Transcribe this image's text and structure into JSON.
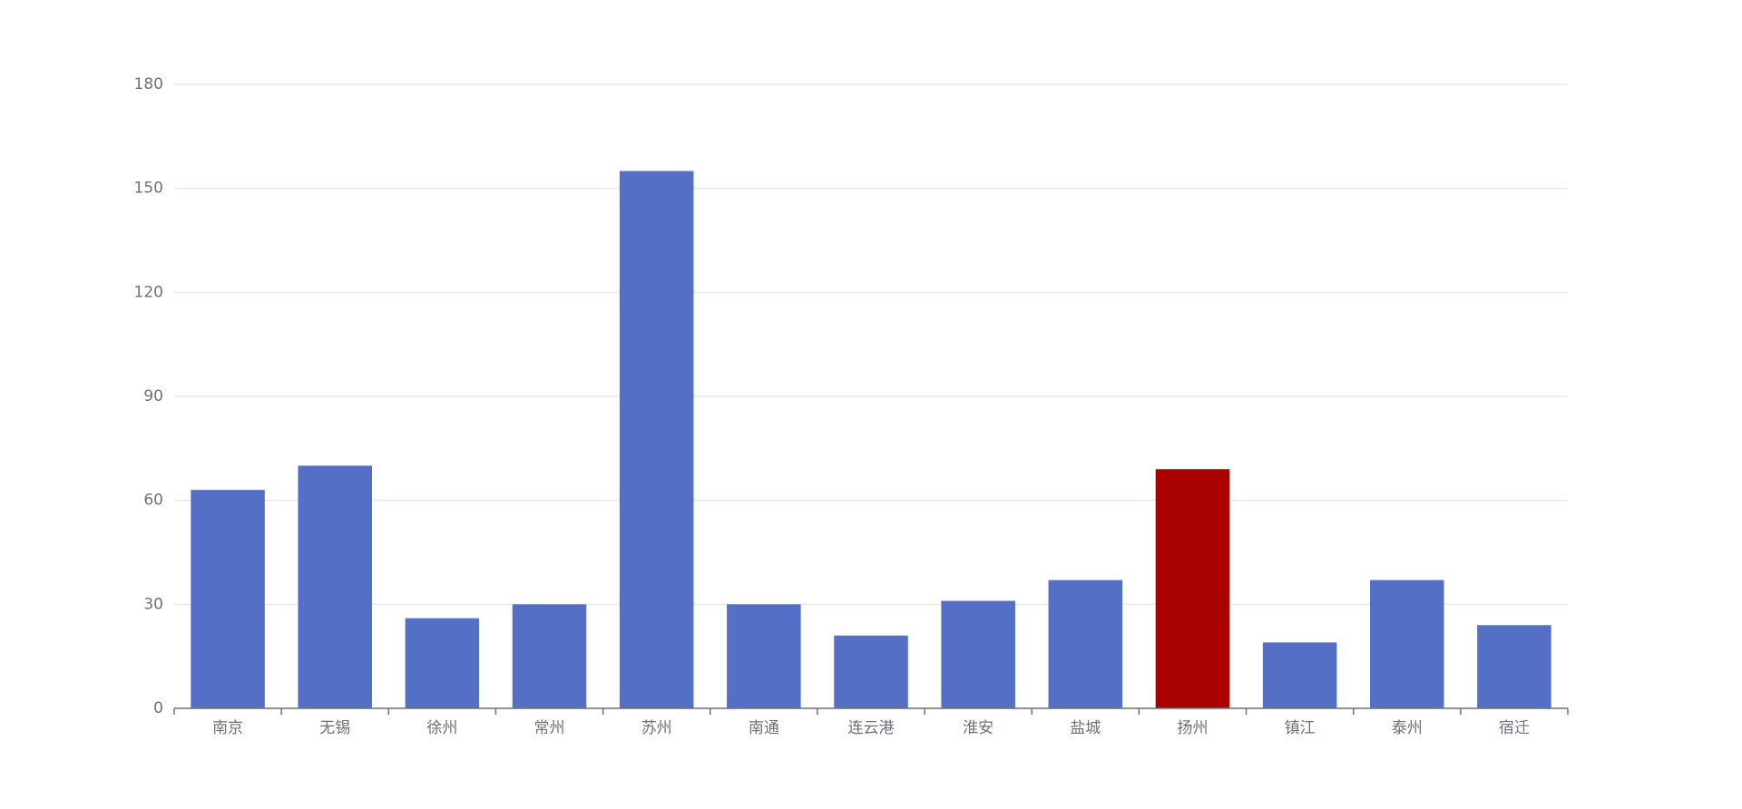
{
  "chart_data": {
    "type": "bar",
    "categories": [
      "南京",
      "无锡",
      "徐州",
      "常州",
      "苏州",
      "南通",
      "连云港",
      "淮安",
      "盐城",
      "扬州",
      "镇江",
      "泰州",
      "宿迁"
    ],
    "values": [
      63,
      70,
      26,
      30,
      155,
      30,
      21,
      31,
      37,
      69,
      19,
      37,
      24
    ],
    "colors": [
      "#5470c6",
      "#5470c6",
      "#5470c6",
      "#5470c6",
      "#5470c6",
      "#5470c6",
      "#5470c6",
      "#5470c6",
      "#5470c6",
      "#a90000",
      "#5470c6",
      "#5470c6",
      "#5470c6"
    ],
    "ylim": [
      0,
      180
    ],
    "yticks": [
      0,
      30,
      60,
      90,
      120,
      150,
      180
    ],
    "grid": true
  }
}
